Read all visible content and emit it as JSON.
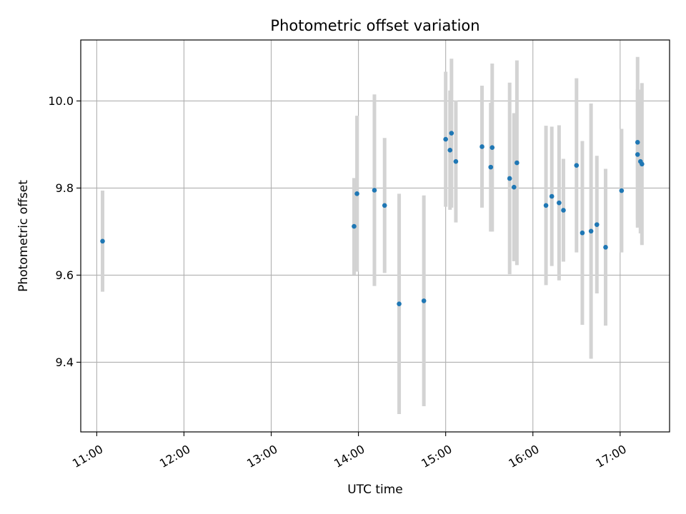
{
  "chart_data": {
    "type": "scatter",
    "title": "Photometric offset variation",
    "xlabel": "UTC time",
    "ylabel": "Photometric offset",
    "xlim": [
      "10:49",
      "17:34"
    ],
    "ylim": [
      9.24,
      10.14
    ],
    "grid": true,
    "legend": null,
    "x_ticks": [
      "11:00",
      "12:00",
      "13:00",
      "14:00",
      "15:00",
      "16:00",
      "17:00"
    ],
    "y_ticks": [
      9.4,
      9.6,
      9.8,
      10.0
    ],
    "y_tick_labels": [
      "9.4",
      "9.6",
      "9.8",
      "10.0"
    ],
    "point_color": "#1f77b4",
    "errorbar_color": "#d3d3d3",
    "points": [
      {
        "t": "11:04",
        "y": 9.678,
        "err": 0.116
      },
      {
        "t": "13:57",
        "y": 9.712,
        "err": 0.111
      },
      {
        "t": "13:59",
        "y": 9.787,
        "err": 0.179
      },
      {
        "t": "14:11",
        "y": 9.795,
        "err": 0.22
      },
      {
        "t": "14:18",
        "y": 9.76,
        "err": 0.155
      },
      {
        "t": "14:28",
        "y": 9.534,
        "err": 0.253
      },
      {
        "t": "14:45",
        "y": 9.541,
        "err": 0.242
      },
      {
        "t": "15:00",
        "y": 9.912,
        "err": 0.155
      },
      {
        "t": "15:03",
        "y": 9.887,
        "err": 0.137
      },
      {
        "t": "15:04",
        "y": 9.926,
        "err": 0.171
      },
      {
        "t": "15:07",
        "y": 9.861,
        "err": 0.14
      },
      {
        "t": "15:25",
        "y": 9.895,
        "err": 0.14
      },
      {
        "t": "15:31",
        "y": 9.848,
        "err": 0.148
      },
      {
        "t": "15:32",
        "y": 9.893,
        "err": 0.193
      },
      {
        "t": "15:44",
        "y": 9.822,
        "err": 0.22
      },
      {
        "t": "15:47",
        "y": 9.802,
        "err": 0.17
      },
      {
        "t": "15:49",
        "y": 9.858,
        "err": 0.235
      },
      {
        "t": "16:09",
        "y": 9.76,
        "err": 0.183
      },
      {
        "t": "16:13",
        "y": 9.781,
        "err": 0.16
      },
      {
        "t": "16:18",
        "y": 9.766,
        "err": 0.178
      },
      {
        "t": "16:21",
        "y": 9.749,
        "err": 0.118
      },
      {
        "t": "16:30",
        "y": 9.852,
        "err": 0.2
      },
      {
        "t": "16:34",
        "y": 9.697,
        "err": 0.211
      },
      {
        "t": "16:40",
        "y": 9.701,
        "err": 0.293
      },
      {
        "t": "16:44",
        "y": 9.716,
        "err": 0.158
      },
      {
        "t": "16:50",
        "y": 9.664,
        "err": 0.18
      },
      {
        "t": "17:01",
        "y": 9.794,
        "err": 0.142
      },
      {
        "t": "17:12",
        "y": 9.877,
        "err": 0.15
      },
      {
        "t": "17:12",
        "y": 9.905,
        "err": 0.196
      },
      {
        "t": "17:14",
        "y": 9.861,
        "err": 0.165
      },
      {
        "t": "17:15",
        "y": 9.855,
        "err": 0.186
      }
    ]
  }
}
